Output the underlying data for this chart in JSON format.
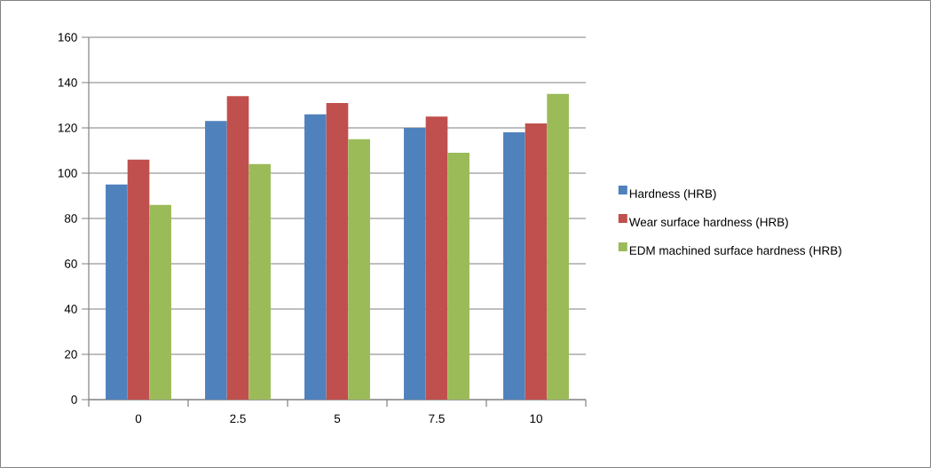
{
  "chart_data": {
    "type": "bar",
    "categories": [
      "0",
      "2.5",
      "5",
      "7.5",
      "10"
    ],
    "series": [
      {
        "name": "Hardness (HRB)",
        "color": "#4f81bd",
        "values": [
          95,
          123,
          126,
          120,
          118
        ]
      },
      {
        "name": "Wear surface hardness (HRB)",
        "color": "#c0504d",
        "values": [
          106,
          134,
          131,
          125,
          122
        ]
      },
      {
        "name": "EDM machined surface hardness (HRB)",
        "color": "#9bbb59",
        "values": [
          86,
          104,
          115,
          109,
          135
        ]
      }
    ],
    "ylim": [
      0,
      160
    ],
    "yticks": [
      0,
      20,
      40,
      60,
      80,
      100,
      120,
      140,
      160
    ],
    "grid": "y",
    "legend": "right"
  }
}
